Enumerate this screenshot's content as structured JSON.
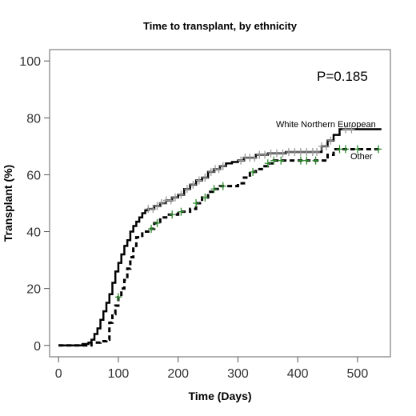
{
  "chart_data": {
    "type": "line",
    "title": "Time to transplant, by ethnicity",
    "xlabel": "Time (Days)",
    "ylabel": "Transplant (%)",
    "xlim": [
      -15,
      555
    ],
    "ylim": [
      -4,
      104
    ],
    "xticks": [
      0,
      100,
      200,
      300,
      400,
      500
    ],
    "yticks": [
      0,
      20,
      40,
      60,
      80,
      100
    ],
    "annotation": "P=0.185",
    "step": true,
    "series": [
      {
        "name": "White Northern European",
        "color": "#000000",
        "censor_color": "#9a9a9a",
        "style": "solid",
        "points": [
          [
            0,
            0
          ],
          [
            30,
            0
          ],
          [
            40,
            0.5
          ],
          [
            50,
            1
          ],
          [
            55,
            2
          ],
          [
            60,
            4
          ],
          [
            65,
            6
          ],
          [
            70,
            9
          ],
          [
            75,
            12
          ],
          [
            80,
            15
          ],
          [
            85,
            18
          ],
          [
            90,
            22
          ],
          [
            95,
            26
          ],
          [
            100,
            29
          ],
          [
            105,
            32
          ],
          [
            110,
            35
          ],
          [
            115,
            37
          ],
          [
            120,
            40
          ],
          [
            125,
            42
          ],
          [
            130,
            43.5
          ],
          [
            135,
            45
          ],
          [
            140,
            46.5
          ],
          [
            145,
            47.5
          ],
          [
            150,
            48
          ],
          [
            160,
            49
          ],
          [
            170,
            50
          ],
          [
            180,
            51
          ],
          [
            190,
            52
          ],
          [
            200,
            53
          ],
          [
            210,
            55
          ],
          [
            220,
            56.5
          ],
          [
            230,
            58
          ],
          [
            240,
            59
          ],
          [
            250,
            61
          ],
          [
            260,
            62
          ],
          [
            270,
            63
          ],
          [
            280,
            64
          ],
          [
            290,
            64.5
          ],
          [
            300,
            65
          ],
          [
            310,
            66
          ],
          [
            330,
            67
          ],
          [
            350,
            67.5
          ],
          [
            380,
            68
          ],
          [
            420,
            68
          ],
          [
            440,
            70
          ],
          [
            450,
            72
          ],
          [
            455,
            72
          ],
          [
            460,
            74
          ],
          [
            470,
            76
          ],
          [
            540,
            76
          ]
        ],
        "censor_x": [
          150,
          158,
          165,
          172,
          180,
          188,
          195,
          205,
          215,
          225,
          235,
          245,
          255,
          262,
          268,
          275,
          305,
          312,
          320,
          328,
          336,
          345,
          355,
          365,
          375,
          385,
          395,
          405,
          415,
          425,
          432,
          440,
          448,
          455,
          480,
          490
        ]
      },
      {
        "name": "Other",
        "color": "#000000",
        "censor_color": "#2e8b2e",
        "style": "dashed",
        "points": [
          [
            0,
            0
          ],
          [
            50,
            0
          ],
          [
            55,
            1
          ],
          [
            65,
            1
          ],
          [
            70,
            1.5
          ],
          [
            80,
            2
          ],
          [
            85,
            8
          ],
          [
            90,
            11
          ],
          [
            95,
            14
          ],
          [
            100,
            17
          ],
          [
            105,
            20
          ],
          [
            110,
            23
          ],
          [
            115,
            27
          ],
          [
            120,
            31
          ],
          [
            125,
            35
          ],
          [
            130,
            38
          ],
          [
            140,
            40
          ],
          [
            150,
            41
          ],
          [
            160,
            43
          ],
          [
            170,
            45
          ],
          [
            180,
            46
          ],
          [
            200,
            47
          ],
          [
            220,
            48
          ],
          [
            230,
            50
          ],
          [
            240,
            52
          ],
          [
            250,
            54
          ],
          [
            260,
            55
          ],
          [
            270,
            56
          ],
          [
            300,
            57
          ],
          [
            310,
            59
          ],
          [
            320,
            61
          ],
          [
            330,
            62
          ],
          [
            340,
            63
          ],
          [
            350,
            64
          ],
          [
            360,
            65
          ],
          [
            380,
            65
          ],
          [
            400,
            65
          ],
          [
            420,
            65
          ],
          [
            440,
            65
          ],
          [
            450,
            67
          ],
          [
            460,
            69
          ],
          [
            470,
            69
          ],
          [
            540,
            69
          ]
        ],
        "censor_x": [
          100,
          155,
          165,
          190,
          205,
          230,
          245,
          260,
          275,
          325,
          350,
          360,
          372,
          405,
          415,
          430,
          470,
          480,
          500,
          535
        ]
      }
    ]
  }
}
